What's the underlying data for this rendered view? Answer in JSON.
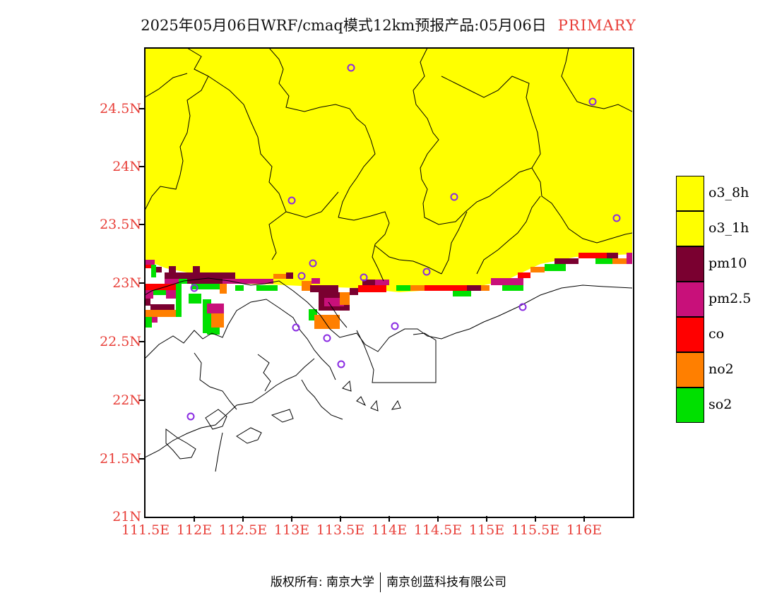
{
  "title": {
    "text": "2025年05月06日WRF/cmaq模式12km预报产品:05月06日",
    "badge": "PRIMARY"
  },
  "axes": {
    "y_ticks": [
      "24.5N",
      "24N",
      "23.5N",
      "23N",
      "22.5N",
      "22N",
      "21.5N",
      "21N"
    ],
    "x_ticks": [
      "111.5E",
      "112E",
      "112.5E",
      "113E",
      "113.5E",
      "114E",
      "114.5E",
      "115E",
      "115.5E",
      "116E"
    ]
  },
  "legend": [
    {
      "label": "o3_8h",
      "color": "#ffff00"
    },
    {
      "label": "o3_1h",
      "color": "#ffff00"
    },
    {
      "label": "pm10",
      "color": "#7a0030"
    },
    {
      "label": "pm2.5",
      "color": "#c8107a"
    },
    {
      "label": "co",
      "color": "#ff0000"
    },
    {
      "label": "no2",
      "color": "#ff7f00"
    },
    {
      "label": "so2",
      "color": "#00e000"
    }
  ],
  "colors": {
    "accent": "#e8403a",
    "station_marker": "#8a2be2",
    "coastline": "#000000"
  },
  "footer": {
    "left": "版权所有: 南京大学",
    "right": "南京创蓝科技有限公司"
  }
}
